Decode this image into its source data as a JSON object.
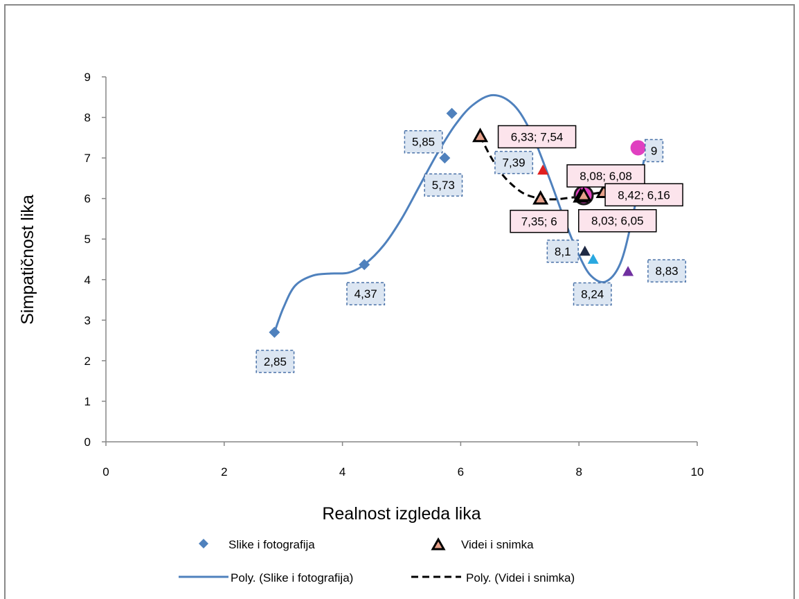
{
  "chart_data": {
    "type": "scatter",
    "xlabel": "Realnost izgleda lika",
    "ylabel": "Simpatičnost lika",
    "xlim": [
      0,
      10
    ],
    "ylim": [
      0,
      9
    ],
    "x_ticks": [
      "0",
      "2",
      "4",
      "6",
      "8",
      "10"
    ],
    "y_ticks": [
      "0",
      "1",
      "2",
      "3",
      "4",
      "5",
      "6",
      "7",
      "8",
      "9"
    ],
    "grid": false,
    "legend_position": "bottom",
    "series": [
      {
        "name": "Slike i fotografija",
        "marker": "diamond",
        "color": "#4f81bd",
        "points": [
          {
            "x": 2.85,
            "y": 2.7,
            "label": "2,85"
          },
          {
            "x": 4.37,
            "y": 4.37,
            "label": "4,37"
          },
          {
            "x": 5.73,
            "y": 7.0,
            "label": "5,73"
          },
          {
            "x": 5.85,
            "y": 8.1,
            "label": "5,85"
          }
        ]
      },
      {
        "name": "Videi i snimka",
        "marker": "triangle",
        "color": "#e6a08a",
        "points": [
          {
            "x": 6.33,
            "y": 7.54,
            "label": "6,33; 7,54"
          },
          {
            "x": 7.35,
            "y": 6.0,
            "label": "7,35; 6"
          },
          {
            "x": 8.03,
            "y": 6.05,
            "label": "8,03; 6,05"
          },
          {
            "x": 8.08,
            "y": 6.08,
            "label": "8,08; 6,08"
          },
          {
            "x": 8.42,
            "y": 6.16,
            "label": "8,42; 6,16"
          }
        ]
      }
    ],
    "other_points": [
      {
        "x": 7.39,
        "y": 6.7,
        "label": "7,39",
        "marker": "triangle",
        "color": "#e02020"
      },
      {
        "x": 8.1,
        "y": 4.7,
        "label": "8,1",
        "marker": "triangle",
        "color": "#1f2a44"
      },
      {
        "x": 8.24,
        "y": 4.5,
        "label": "8,24",
        "marker": "triangle",
        "color": "#29a8e0"
      },
      {
        "x": 8.83,
        "y": 4.2,
        "label": "8,83",
        "marker": "triangle",
        "color": "#7030a0"
      },
      {
        "x": 9.0,
        "y": 7.25,
        "label": "9",
        "marker": "circle",
        "color": "#e040c0"
      },
      {
        "x": 8.08,
        "y": 6.08,
        "label": "",
        "marker": "circle-large",
        "color": "#e040c0"
      }
    ],
    "trendlines": [
      {
        "name": "Poly. (Slike i fotografija)",
        "style": "solid",
        "color": "#4f81bd",
        "points": [
          [
            2.85,
            2.7
          ],
          [
            3.0,
            3.3
          ],
          [
            3.2,
            3.85
          ],
          [
            3.5,
            4.1
          ],
          [
            3.8,
            4.15
          ],
          [
            4.1,
            4.17
          ],
          [
            4.37,
            4.37
          ],
          [
            4.7,
            4.85
          ],
          [
            5.0,
            5.5
          ],
          [
            5.3,
            6.3
          ],
          [
            5.6,
            7.1
          ],
          [
            5.9,
            7.8
          ],
          [
            6.2,
            8.3
          ],
          [
            6.55,
            8.55
          ],
          [
            6.9,
            8.3
          ],
          [
            7.2,
            7.6
          ],
          [
            7.5,
            6.5
          ],
          [
            7.8,
            5.3
          ],
          [
            8.0,
            4.6
          ],
          [
            8.2,
            4.1
          ],
          [
            8.45,
            3.95
          ],
          [
            8.7,
            4.4
          ],
          [
            8.9,
            5.5
          ],
          [
            9.1,
            6.95
          ]
        ]
      },
      {
        "name": "Poly. (Videi i snimka)",
        "style": "dashed",
        "color": "#000000",
        "points": [
          [
            6.33,
            7.54
          ],
          [
            6.5,
            7.05
          ],
          [
            6.7,
            6.6
          ],
          [
            6.9,
            6.3
          ],
          [
            7.1,
            6.1
          ],
          [
            7.35,
            6.0
          ],
          [
            7.6,
            5.98
          ],
          [
            7.85,
            6.02
          ],
          [
            8.03,
            6.05
          ],
          [
            8.08,
            6.08
          ],
          [
            8.25,
            6.12
          ],
          [
            8.42,
            6.16
          ]
        ]
      }
    ]
  }
}
